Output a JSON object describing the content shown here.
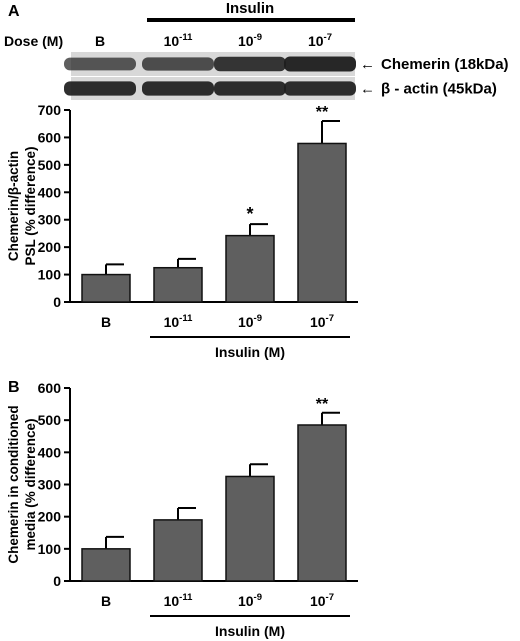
{
  "panel_a": {
    "label": "A",
    "top_group_label": "Insulin",
    "dose_label": "Dose (M)",
    "blot_lanes": [
      {
        "base": "B",
        "exp": ""
      },
      {
        "base": "10",
        "exp": "-11"
      },
      {
        "base": "10",
        "exp": "-9"
      },
      {
        "base": "10",
        "exp": "-7"
      }
    ],
    "blot_rows": [
      {
        "label": "Chemerin (18kDa)",
        "arrow": "←",
        "intensity": [
          0.55,
          0.62,
          0.82,
          0.92
        ]
      },
      {
        "label": "β - actin (45kDa)",
        "arrow": "←",
        "intensity": [
          0.88,
          0.88,
          0.88,
          0.88
        ]
      }
    ]
  },
  "panel_b": {
    "label": "B"
  },
  "colors": {
    "bar_fill": "#5f5f5f",
    "bar_stroke": "#111111",
    "blot_bg": "#d8d8d8",
    "band": "#1d1d1d"
  },
  "chart_data": [
    {
      "type": "bar",
      "panel": "A",
      "categories": [
        {
          "base": "B",
          "exp": ""
        },
        {
          "base": "10",
          "exp": "-11"
        },
        {
          "base": "10",
          "exp": "-9"
        },
        {
          "base": "10",
          "exp": "-7"
        }
      ],
      "values": [
        100,
        125,
        242,
        578
      ],
      "errors": [
        37,
        32,
        42,
        82
      ],
      "significance": [
        "",
        "",
        "*",
        "**"
      ],
      "ylabel_lines": [
        "Chemerin/β-actin",
        "PSL (% difference)"
      ],
      "yticks": [
        0,
        100,
        200,
        300,
        400,
        500,
        600,
        700
      ],
      "ylim": [
        0,
        700
      ],
      "group_label": "Insulin (M)",
      "grid": false
    },
    {
      "type": "bar",
      "panel": "B",
      "categories": [
        {
          "base": "B",
          "exp": ""
        },
        {
          "base": "10",
          "exp": "-11"
        },
        {
          "base": "10",
          "exp": "-9"
        },
        {
          "base": "10",
          "exp": "-7"
        }
      ],
      "values": [
        100,
        190,
        325,
        485
      ],
      "errors": [
        37,
        37,
        38,
        38
      ],
      "significance": [
        "",
        "",
        "",
        "**"
      ],
      "ylabel_lines": [
        "Chemerin in conditioned",
        "media (% difference)"
      ],
      "yticks": [
        0,
        100,
        200,
        300,
        400,
        500,
        600
      ],
      "ylim": [
        0,
        600
      ],
      "group_label": "Insulin (M)",
      "grid": false
    }
  ]
}
